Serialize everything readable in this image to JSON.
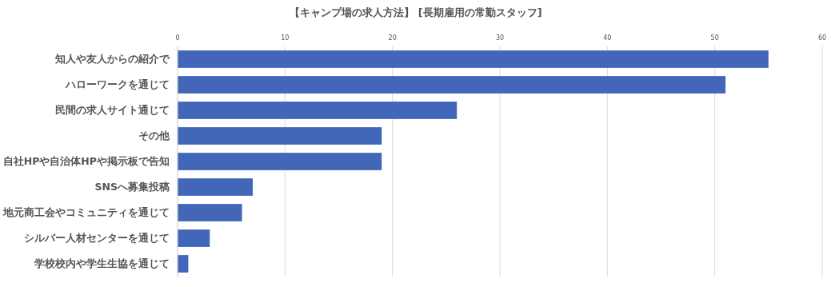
{
  "chart_data": {
    "type": "bar",
    "orientation": "horizontal",
    "title": "【キャンプ場の求人方法】 [長期雇用の常勤スタッフ]",
    "categories": [
      "知人や友人からの紹介で",
      "ハローワークを通じて",
      "民間の求人サイト通じて",
      "その他",
      "自社HPや自治体HPや掲示板で告知",
      "SNSへ募集投稿",
      "地元商工会やコミュニティを通じて",
      "シルバー人材センターを通じて",
      "学校校内や学生生協を通じて"
    ],
    "values": [
      55,
      51,
      26,
      19,
      19,
      7,
      6,
      3,
      1
    ],
    "color": "#4267b8",
    "xlim": [
      0,
      60
    ],
    "xticks": [
      0,
      10,
      20,
      30,
      40,
      50,
      60
    ],
    "grid": "x"
  }
}
